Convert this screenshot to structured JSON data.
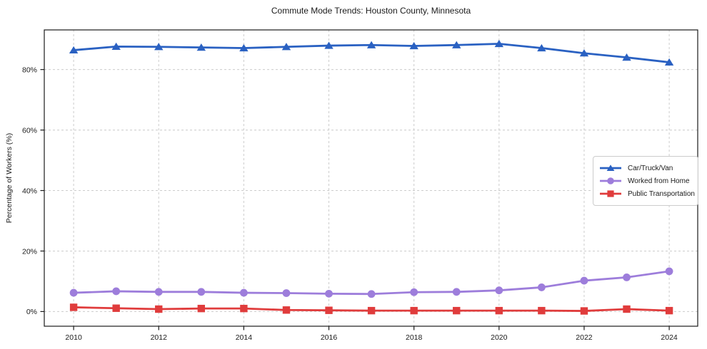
{
  "chart_data": {
    "type": "line",
    "title": "Commute Mode Trends: Houston County, Minnesota",
    "xlabel": "",
    "ylabel": "Percentage of Workers (%)",
    "x": [
      2010,
      2011,
      2012,
      2013,
      2014,
      2015,
      2016,
      2017,
      2018,
      2019,
      2020,
      2021,
      2022,
      2023,
      2024
    ],
    "series": [
      {
        "name": "Car/Truck/Van",
        "color": "#2a61c2",
        "marker": "triangle",
        "values": [
          86.4,
          87.6,
          87.5,
          87.3,
          87.1,
          87.5,
          87.9,
          88.1,
          87.8,
          88.1,
          88.5,
          87.1,
          85.4,
          84.0,
          82.4
        ]
      },
      {
        "name": "Worked from Home",
        "color": "#9d7ddb",
        "marker": "circle",
        "values": [
          6.2,
          6.7,
          6.5,
          6.5,
          6.2,
          6.1,
          5.9,
          5.8,
          6.4,
          6.5,
          7.0,
          8.0,
          10.2,
          11.3,
          13.3
        ]
      },
      {
        "name": "Public Transportation",
        "color": "#e03c3c",
        "marker": "square",
        "values": [
          1.4,
          1.1,
          0.8,
          1.0,
          1.0,
          0.5,
          0.4,
          0.3,
          0.3,
          0.3,
          0.3,
          0.3,
          0.2,
          0.8,
          0.3
        ]
      }
    ],
    "x_ticks": [
      {
        "value": 2010,
        "label": "2010"
      },
      {
        "value": 2012,
        "label": "2012"
      },
      {
        "value": 2014,
        "label": "2014"
      },
      {
        "value": 2016,
        "label": "2016"
      },
      {
        "value": 2018,
        "label": "2018"
      },
      {
        "value": 2020,
        "label": "2020"
      },
      {
        "value": 2022,
        "label": "2022"
      },
      {
        "value": 2024,
        "label": "2024"
      }
    ],
    "y_ticks": [
      {
        "value": 0,
        "label": "0%"
      },
      {
        "value": 20,
        "label": "20%"
      },
      {
        "value": 40,
        "label": "40%"
      },
      {
        "value": 60,
        "label": "60%"
      },
      {
        "value": 80,
        "label": "80%"
      }
    ],
    "xlim": [
      2009.31,
      2024.67
    ],
    "ylim": [
      -4.85,
      93.1
    ],
    "grid": true,
    "legend_position": "center-right",
    "style": {
      "background": "#ffffff",
      "spine_color": "#1a1a1a",
      "grid_color": "#cccccc",
      "text_color": "#1a1a1a"
    }
  }
}
